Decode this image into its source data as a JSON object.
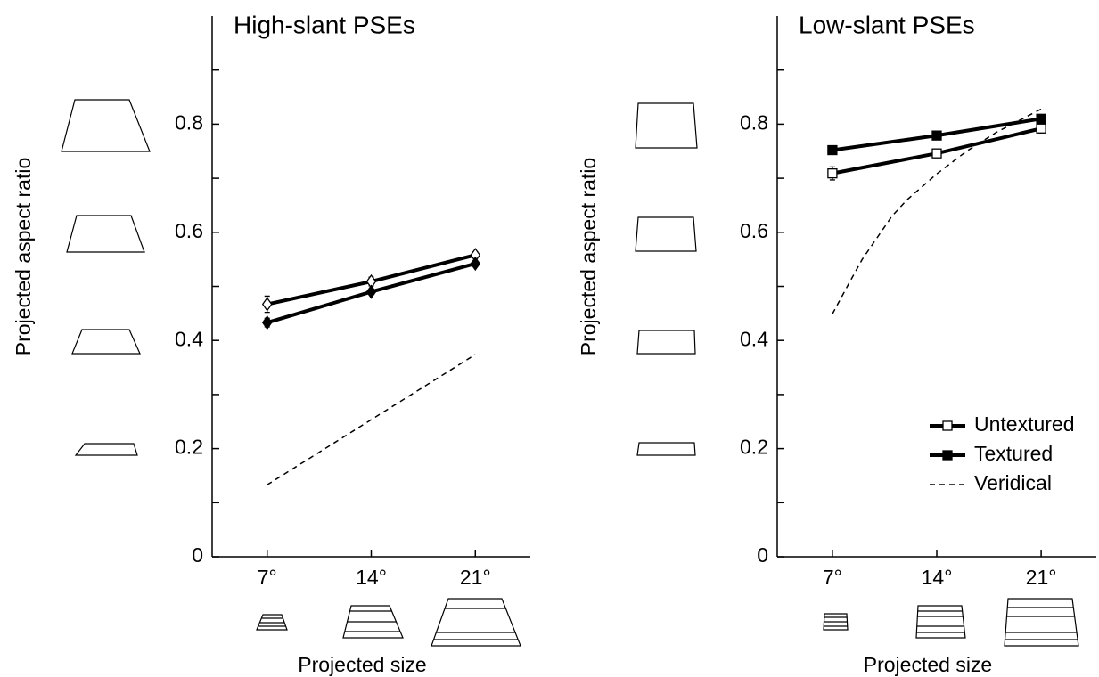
{
  "chart_data": [
    {
      "type": "line",
      "title": "High-slant PSEs",
      "y_label": "Projected aspect ratio",
      "x_label": "Projected size",
      "x": [
        7,
        14,
        21
      ],
      "xticks": [
        {
          "value": 7,
          "label": "7°"
        },
        {
          "value": 14,
          "label": "14°"
        },
        {
          "value": 21,
          "label": "21°"
        }
      ],
      "xlim": [
        3.3,
        24.7
      ],
      "ylim": [
        0,
        1
      ],
      "yticks": [
        0,
        0.2,
        0.4,
        0.6,
        0.8
      ],
      "yticks_minor": [
        0.1,
        0.3,
        0.5,
        0.7,
        0.9
      ],
      "marker": "diamond",
      "series": [
        {
          "color": "#000000",
          "marker_fill": "#ffffff",
          "values": [
            0.467,
            0.509,
            0.558
          ],
          "errors": [
            0.015,
            0.008,
            0.006
          ]
        },
        {
          "color": "#000000",
          "marker_fill": "#000000",
          "values": [
            0.433,
            0.49,
            0.542
          ],
          "errors": [
            0.008,
            0.005,
            0.004
          ]
        },
        {
          "color": "#000000",
          "dashed": true,
          "x": [
            7,
            21
          ],
          "values": [
            0.133,
            0.374
          ]
        }
      ]
    },
    {
      "type": "line",
      "title": "Low-slant PSEs",
      "y_label": "Projected aspect ratio",
      "x_label": "Projected size",
      "x": [
        7,
        14,
        21
      ],
      "xticks": [
        {
          "value": 7,
          "label": "7°"
        },
        {
          "value": 14,
          "label": "14°"
        },
        {
          "value": 21,
          "label": "21°"
        }
      ],
      "xlim": [
        3.3,
        24.7
      ],
      "ylim": [
        0,
        1
      ],
      "yticks": [
        0,
        0.2,
        0.4,
        0.6,
        0.8
      ],
      "yticks_minor": [
        0.1,
        0.3,
        0.5,
        0.7,
        0.9
      ],
      "marker": "square",
      "legend": "lower right",
      "series": [
        {
          "name": "Untextured",
          "color": "#000000",
          "marker_fill": "#ffffff",
          "values": [
            0.709,
            0.746,
            0.792
          ],
          "errors": [
            0.012,
            0.008,
            0.008
          ]
        },
        {
          "name": "Textured",
          "color": "#000000",
          "marker_fill": "#000000",
          "values": [
            0.752,
            0.779,
            0.81
          ],
          "errors": [
            0.008,
            0.006,
            0.006
          ]
        },
        {
          "name": "Veridical",
          "color": "#000000",
          "dashed": true,
          "x": [
            7,
            8,
            9,
            10,
            11,
            12,
            14,
            16,
            18,
            21
          ],
          "values": [
            0.449,
            0.5,
            0.55,
            0.59,
            0.63,
            0.66,
            0.708,
            0.75,
            0.785,
            0.828
          ]
        }
      ]
    }
  ]
}
